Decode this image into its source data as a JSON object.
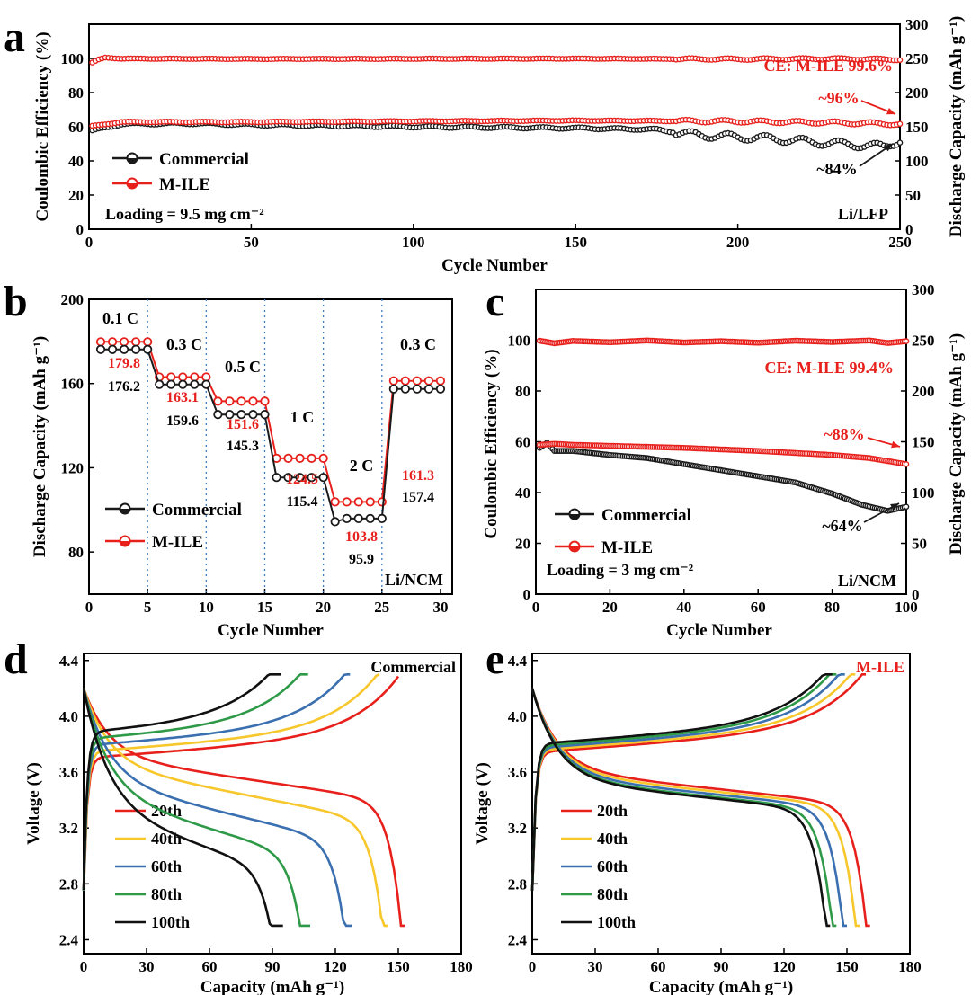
{
  "colors": {
    "commercial": "#1a1a1a",
    "m_ile": "#e8201c",
    "divider": "#3a7fc6"
  },
  "chart_data": [
    {
      "id": "a",
      "panel_label": "a",
      "type": "line",
      "title": "",
      "xlabel": "Cycle Number",
      "ylabel_left": "Coulombic Efficiency (%)",
      "ylabel_right": "Discharge Capacity (mAh g⁻¹)",
      "xlim": [
        0,
        250
      ],
      "ylim_left": [
        0,
        120
      ],
      "ylim_right": [
        0,
        300
      ],
      "x_ticks": [
        0,
        50,
        100,
        150,
        200,
        250
      ],
      "yleft_ticks": [
        0,
        20,
        40,
        60,
        80,
        100
      ],
      "yright_ticks": [
        0,
        50,
        100,
        150,
        200,
        250,
        300
      ],
      "series": [
        {
          "name": "CE M-ILE",
          "axis": "left",
          "color": "#e8201c",
          "marker": "none",
          "points": [
            [
              1,
              97.5
            ],
            [
              3,
              99.3
            ],
            [
              5,
              100.5
            ],
            [
              10,
              99.9
            ],
            [
              50,
              99.7
            ],
            [
              100,
              99.8
            ],
            [
              150,
              99.9
            ],
            [
              200,
              99.6
            ],
            [
              230,
              99.8
            ],
            [
              250,
              99.4
            ]
          ]
        },
        {
          "name": "Commercial",
          "axis": "right",
          "color": "#1a1a1a",
          "marker": "circle",
          "points": [
            [
              1,
              144
            ],
            [
              10,
              154
            ],
            [
              30,
              155
            ],
            [
              50,
              153
            ],
            [
              100,
              150
            ],
            [
              150,
              148
            ],
            [
              175,
              146
            ],
            [
              185,
              139
            ],
            [
              195,
              136
            ],
            [
              205,
              134
            ],
            [
              215,
              131
            ],
            [
              225,
              127
            ],
            [
              235,
              124
            ],
            [
              245,
              121
            ],
            [
              250,
              130
            ]
          ]
        },
        {
          "name": "M-ILE",
          "axis": "right",
          "color": "#e8201c",
          "marker": "circle",
          "points": [
            [
              1,
              151
            ],
            [
              10,
              157
            ],
            [
              50,
              157
            ],
            [
              100,
              158
            ],
            [
              150,
              159
            ],
            [
              200,
              158
            ],
            [
              230,
              156
            ],
            [
              250,
              154
            ]
          ]
        }
      ],
      "legend": [
        {
          "label": "Commercial",
          "color": "#1a1a1a"
        },
        {
          "label": "M-ILE",
          "color": "#e8201c"
        }
      ],
      "annotations": {
        "ce": "CE: M-ILE 99.6%",
        "m_ile_ret": "~96%",
        "com_ret": "~84%",
        "loading": "Loading = 9.5 mg cm⁻²",
        "cell": "Li/LFP"
      }
    },
    {
      "id": "b",
      "panel_label": "b",
      "type": "line",
      "title": "",
      "xlabel": "Cycle Number",
      "ylabel": "Discharge Capacity (mAh g⁻¹)",
      "xlim": [
        0,
        31
      ],
      "ylim": [
        60,
        200
      ],
      "x_ticks": [
        0,
        5,
        10,
        15,
        20,
        25,
        30
      ],
      "y_ticks": [
        80,
        120,
        160,
        200
      ],
      "dividers": [
        5,
        10,
        15,
        20,
        25
      ],
      "series": [
        {
          "name": "M-ILE",
          "color": "#e8201c",
          "values": [
            179.8,
            179.8,
            179.8,
            179.8,
            179.8,
            163.1,
            163.1,
            163.1,
            163.1,
            163.1,
            151.6,
            151.6,
            151.6,
            151.6,
            151.6,
            124.5,
            124.5,
            124.5,
            124.5,
            124.5,
            103.8,
            103.8,
            103.8,
            103.8,
            103.8,
            161.3,
            161.3,
            161.3,
            161.3,
            161.3
          ]
        },
        {
          "name": "Commercial",
          "color": "#1a1a1a",
          "values": [
            176.2,
            176.2,
            176.2,
            176.2,
            176.2,
            159.6,
            159.6,
            159.6,
            159.6,
            159.6,
            145.3,
            145.3,
            145.3,
            145.3,
            145.3,
            115.4,
            115.4,
            115.4,
            115.4,
            115.4,
            94.4,
            95.9,
            95.9,
            95.9,
            95.9,
            157.4,
            157.4,
            157.4,
            157.4,
            157.4
          ]
        }
      ],
      "rate_labels": [
        "0.1 C",
        "0.3 C",
        "0.5 C",
        "1 C",
        "2 C",
        "0.3 C"
      ],
      "m_ile_labels": [
        "179.8",
        "163.1",
        "151.6",
        "124.5",
        "103.8",
        "161.3"
      ],
      "commercial_labels": [
        "176.2",
        "159.6",
        "145.3",
        "115.4",
        "95.9",
        "157.4"
      ],
      "legend": [
        {
          "label": "Commercial",
          "color": "#1a1a1a"
        },
        {
          "label": "M-ILE",
          "color": "#e8201c"
        }
      ],
      "annotations": {
        "cell": "Li/NCM"
      }
    },
    {
      "id": "c",
      "panel_label": "c",
      "type": "line",
      "title": "",
      "xlabel": "Cycle Number",
      "ylabel_left": "Coulombic Efficiency (%)",
      "ylabel_right": "Discharge Capacity (mAh g⁻¹)",
      "xlim": [
        0,
        100
      ],
      "ylim_left": [
        0,
        120
      ],
      "ylim_right": [
        0,
        300
      ],
      "x_ticks": [
        0,
        20,
        40,
        60,
        80,
        100
      ],
      "yleft_ticks": [
        0,
        20,
        40,
        60,
        80,
        100
      ],
      "yright_ticks": [
        0,
        50,
        100,
        150,
        200,
        250,
        300
      ],
      "series": [
        {
          "name": "CE M-ILE",
          "axis": "left",
          "color": "#e8201c",
          "marker": "circle",
          "points": [
            [
              1,
              99.8
            ],
            [
              5,
              98.8
            ],
            [
              10,
              99.7
            ],
            [
              20,
              99.2
            ],
            [
              30,
              99.9
            ],
            [
              40,
              99.1
            ],
            [
              50,
              99.6
            ],
            [
              60,
              99.0
            ],
            [
              70,
              99.8
            ],
            [
              80,
              99.3
            ],
            [
              90,
              99.9
            ],
            [
              95,
              98.9
            ],
            [
              100,
              99.6
            ]
          ]
        },
        {
          "name": "Commercial",
          "axis": "right",
          "color": "#1a1a1a",
          "marker": "circle",
          "points": [
            [
              1,
              144
            ],
            [
              3,
              149
            ],
            [
              5,
              141
            ],
            [
              10,
              141
            ],
            [
              20,
              137
            ],
            [
              30,
              134
            ],
            [
              40,
              128
            ],
            [
              50,
              122
            ],
            [
              60,
              116
            ],
            [
              70,
              110
            ],
            [
              80,
              99
            ],
            [
              88,
              88
            ],
            [
              95,
              82
            ],
            [
              100,
              86
            ]
          ]
        },
        {
          "name": "M-ILE",
          "axis": "right",
          "color": "#e8201c",
          "marker": "circle",
          "points": [
            [
              1,
              147
            ],
            [
              5,
              148
            ],
            [
              10,
              147
            ],
            [
              20,
              146
            ],
            [
              40,
              144
            ],
            [
              60,
              141
            ],
            [
              80,
              137
            ],
            [
              90,
              134
            ],
            [
              100,
              128
            ]
          ]
        }
      ],
      "legend": [
        {
          "label": "Commercial",
          "color": "#1a1a1a"
        },
        {
          "label": "M-ILE",
          "color": "#e8201c"
        }
      ],
      "annotations": {
        "ce": "CE: M-ILE 99.4%",
        "m_ile_ret": "~88%",
        "com_ret": "~64%",
        "loading": "Loading = 3 mg cm⁻²",
        "cell": "Li/NCM"
      }
    },
    {
      "id": "d",
      "panel_label": "d",
      "type": "line",
      "title": "Commercial",
      "xlabel": "Capacity (mAh g⁻¹)",
      "ylabel": "Voltage (V)",
      "xlim": [
        0,
        180
      ],
      "ylim": [
        2.3,
        4.45
      ],
      "x_ticks": [
        0,
        30,
        60,
        90,
        120,
        150,
        180
      ],
      "y_ticks": [
        2.4,
        2.8,
        3.2,
        3.6,
        4.0,
        4.4
      ],
      "series": [
        {
          "name": "20th",
          "color": "#e8201c",
          "discharge_capacity": 153,
          "charge_capacity": 150,
          "plateau": 3.72
        },
        {
          "name": "40th",
          "color": "#f7c72c",
          "discharge_capacity": 145,
          "charge_capacity": 141,
          "plateau": 3.66
        },
        {
          "name": "60th",
          "color": "#3a6fb0",
          "discharge_capacity": 128,
          "charge_capacity": 127,
          "plateau": 3.55
        },
        {
          "name": "80th",
          "color": "#2e9a48",
          "discharge_capacity": 108,
          "charge_capacity": 107,
          "plateau": 3.45
        },
        {
          "name": "100th",
          "color": "#111111",
          "discharge_capacity": 95,
          "charge_capacity": 94,
          "plateau": 3.35
        }
      ]
    },
    {
      "id": "e",
      "panel_label": "e",
      "type": "line",
      "title": "M-ILE",
      "xlabel": "Capacity (mAh g⁻¹)",
      "ylabel": "Voltage (V)",
      "xlim": [
        0,
        180
      ],
      "ylim": [
        2.3,
        4.45
      ],
      "x_ticks": [
        0,
        30,
        60,
        90,
        120,
        150,
        180
      ],
      "y_ticks": [
        2.4,
        2.8,
        3.2,
        3.6,
        4.0,
        4.4
      ],
      "series": [
        {
          "name": "20th",
          "color": "#e8201c",
          "discharge_capacity": 161,
          "charge_capacity": 159,
          "plateau": 3.62
        },
        {
          "name": "40th",
          "color": "#f7c72c",
          "discharge_capacity": 156,
          "charge_capacity": 154,
          "plateau": 3.6
        },
        {
          "name": "60th",
          "color": "#3a6fb0",
          "discharge_capacity": 150,
          "charge_capacity": 149,
          "plateau": 3.58
        },
        {
          "name": "80th",
          "color": "#2e9a48",
          "discharge_capacity": 145,
          "charge_capacity": 145,
          "plateau": 3.56
        },
        {
          "name": "100th",
          "color": "#111111",
          "discharge_capacity": 142,
          "charge_capacity": 143,
          "plateau": 3.55
        }
      ]
    }
  ]
}
